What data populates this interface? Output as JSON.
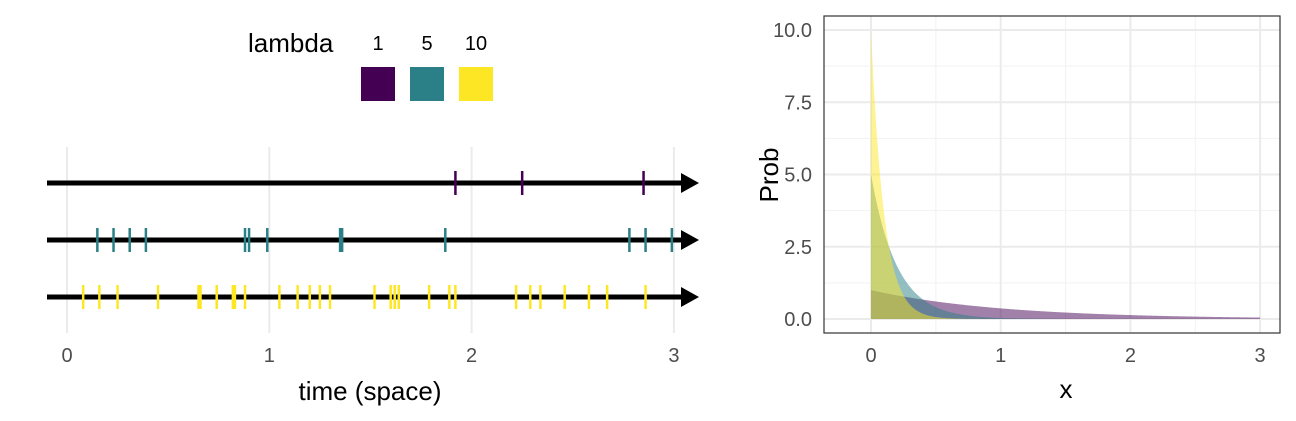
{
  "chart_data": [
    {
      "type": "scatter",
      "subtype": "event-timeline",
      "xlabel": "time (space)",
      "ylabel": "",
      "xlim": [
        0,
        3
      ],
      "x_ticks": [
        0,
        1,
        2,
        3
      ],
      "grid": true,
      "legend": {
        "title": "lambda",
        "position": "top",
        "entries": [
          {
            "label": "1",
            "color": "#440154"
          },
          {
            "label": "5",
            "color": "#2a8086"
          },
          {
            "label": "10",
            "color": "#fde725"
          }
        ]
      },
      "series": [
        {
          "lambda": "1",
          "color": "#440154",
          "events": [
            1.92,
            2.25,
            2.85
          ]
        },
        {
          "lambda": "5",
          "color": "#2a8086",
          "events": [
            0.15,
            0.23,
            0.31,
            0.39,
            0.88,
            0.9,
            0.99,
            1.35,
            1.36,
            1.87,
            2.78,
            2.86,
            2.99
          ]
        },
        {
          "lambda": "10",
          "color": "#fde725",
          "events": [
            0.08,
            0.16,
            0.25,
            0.45,
            0.65,
            0.66,
            0.74,
            0.82,
            0.83,
            0.88,
            1.05,
            1.14,
            1.2,
            1.25,
            1.3,
            1.52,
            1.6,
            1.62,
            1.64,
            1.79,
            1.89,
            1.92,
            2.22,
            2.29,
            2.34,
            2.46,
            2.58,
            2.67,
            2.86
          ]
        }
      ]
    },
    {
      "type": "area",
      "subtype": "exponential-density",
      "xlabel": "x",
      "ylabel": "Prob",
      "xlim": [
        0,
        3
      ],
      "ylim": [
        0,
        10
      ],
      "x_ticks": [
        0,
        1,
        2,
        3
      ],
      "y_ticks": [
        0.0,
        2.5,
        5.0,
        7.5,
        10.0
      ],
      "y_tick_labels": [
        "0.0",
        "2.5",
        "5.0",
        "7.5",
        "10.0"
      ],
      "grid": true,
      "series": [
        {
          "lambda": 1,
          "color": "#440154",
          "opacity": 0.5,
          "function": "lambda*exp(-lambda*x)"
        },
        {
          "lambda": 5,
          "color": "#2a8086",
          "opacity": 0.5,
          "function": "lambda*exp(-lambda*x)"
        },
        {
          "lambda": 10,
          "color": "#fde725",
          "opacity": 0.5,
          "function": "lambda*exp(-lambda*x)"
        }
      ]
    }
  ]
}
